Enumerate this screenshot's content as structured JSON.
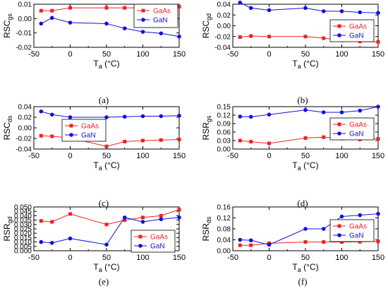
{
  "chart_data": [
    {
      "type": "line",
      "panel_label": "(a)",
      "ylabel_main": "RSC",
      "ylabel_sub": "gs",
      "xlabel_main": "T",
      "xlabel_sub": "a",
      "xlabel_unit": " (°C)",
      "xlim": [
        -50,
        150
      ],
      "ylim": [
        -0.02,
        0.01
      ],
      "x_ticks": [
        -50,
        0,
        50,
        100,
        150
      ],
      "x_tick_labels": [
        "-50",
        "0",
        "50",
        "100",
        "150"
      ],
      "y_ticks": [
        -0.02,
        -0.01,
        0,
        0.01
      ],
      "y_tick_labels": [
        "-0.02",
        "-0.01",
        "0.00",
        "0.01"
      ],
      "legend_position": "top-right",
      "series": [
        {
          "name": "GaAs",
          "color": "#ee2222",
          "marker": "square",
          "x": [
            -40,
            -25,
            0,
            50,
            75,
            100,
            125,
            150
          ],
          "y": [
            0.0055,
            0.0055,
            0.0075,
            0.0075,
            0.0075,
            0.0075,
            0.0073,
            0.0083
          ]
        },
        {
          "name": "GaN",
          "color": "#1111dd",
          "marker": "circle",
          "x": [
            -40,
            -25,
            0,
            50,
            75,
            100,
            125,
            150
          ],
          "y": [
            -0.0035,
            0.0005,
            -0.0028,
            -0.0035,
            -0.0068,
            -0.0092,
            -0.0103,
            -0.0125
          ]
        }
      ]
    },
    {
      "type": "line",
      "panel_label": "(b)",
      "ylabel_main": "RSC",
      "ylabel_sub": "gd",
      "xlabel_main": "T",
      "xlabel_sub": "a",
      "xlabel_unit": " (°C)",
      "xlim": [
        -50,
        150
      ],
      "ylim": [
        -0.04,
        0.04
      ],
      "x_ticks": [
        -50,
        0,
        50,
        100,
        150
      ],
      "x_tick_labels": [
        "-50",
        "0",
        "50",
        "100",
        "150"
      ],
      "y_ticks": [
        -0.04,
        -0.02,
        0,
        0.02,
        0.04
      ],
      "y_tick_labels": [
        "-0.04",
        "-0.02",
        "0.00",
        "0.02",
        "0.04"
      ],
      "legend_position": "center-right",
      "series": [
        {
          "name": "GaAs",
          "color": "#ee2222",
          "marker": "square",
          "x": [
            -40,
            -25,
            0,
            50,
            75,
            100,
            125,
            150
          ],
          "y": [
            -0.021,
            -0.019,
            -0.02,
            -0.02,
            -0.023,
            -0.027,
            -0.029,
            -0.03
          ]
        },
        {
          "name": "GaN",
          "color": "#1111dd",
          "marker": "circle",
          "x": [
            -40,
            -25,
            0,
            50,
            75,
            100,
            125,
            150
          ],
          "y": [
            0.043,
            0.033,
            0.029,
            0.033,
            0.027,
            0.027,
            0.025,
            0.024
          ]
        }
      ]
    },
    {
      "type": "line",
      "panel_label": "(c)",
      "ylabel_main": "RSC",
      "ylabel_sub": "ds",
      "xlabel_main": "T",
      "xlabel_sub": "a",
      "xlabel_unit": " (°C)",
      "xlim": [
        -50,
        150
      ],
      "ylim": [
        -0.04,
        0.04
      ],
      "x_ticks": [
        -50,
        0,
        50,
        100,
        150
      ],
      "x_tick_labels": [
        "-50",
        "0",
        "50",
        "100",
        "150"
      ],
      "y_ticks": [
        -0.04,
        -0.02,
        0,
        0.02,
        0.04
      ],
      "y_tick_labels": [
        "-0.04",
        "-0.02",
        "0.00",
        "0.02",
        "0.04"
      ],
      "legend_position": "center",
      "series": [
        {
          "name": "GaAs",
          "color": "#ee2222",
          "marker": "square",
          "x": [
            -40,
            -25,
            0,
            50,
            75,
            100,
            125,
            150
          ],
          "y": [
            -0.015,
            -0.016,
            -0.019,
            -0.035,
            -0.026,
            -0.024,
            -0.023,
            -0.022
          ]
        },
        {
          "name": "GaN",
          "color": "#1111dd",
          "marker": "circle",
          "x": [
            -40,
            -25,
            0,
            50,
            75,
            100,
            125,
            150
          ],
          "y": [
            0.031,
            0.025,
            0.02,
            0.02,
            0.021,
            0.022,
            0.022,
            0.023
          ]
        }
      ]
    },
    {
      "type": "line",
      "panel_label": "(d)",
      "ylabel_main": "RSR",
      "ylabel_sub": "gs",
      "xlabel_main": "T",
      "xlabel_sub": "a",
      "xlabel_unit": " (°C)",
      "xlim": [
        -50,
        150
      ],
      "ylim": [
        0,
        0.15
      ],
      "x_ticks": [
        -50,
        0,
        50,
        100,
        150
      ],
      "x_tick_labels": [
        "-50",
        "0",
        "50",
        "100",
        "150"
      ],
      "y_ticks": [
        0,
        0.03,
        0.06,
        0.09,
        0.12,
        0.15
      ],
      "y_tick_labels": [
        "0.00",
        "0.03",
        "0.06",
        "0.09",
        "0.12",
        "0.15"
      ],
      "legend_position": "center-right",
      "series": [
        {
          "name": "GaAs",
          "color": "#ee2222",
          "marker": "square",
          "x": [
            -40,
            -25,
            0,
            50,
            75,
            100,
            125,
            150
          ],
          "y": [
            0.03,
            0.026,
            0.02,
            0.039,
            0.042,
            0.037,
            0.034,
            0.036
          ]
        },
        {
          "name": "GaN",
          "color": "#1111dd",
          "marker": "circle",
          "x": [
            -40,
            -25,
            0,
            50,
            75,
            100,
            125,
            150
          ],
          "y": [
            0.115,
            0.114,
            0.122,
            0.138,
            0.13,
            0.13,
            0.136,
            0.15
          ]
        }
      ]
    },
    {
      "type": "line",
      "panel_label": "(e)",
      "ylabel_main": "RSR",
      "ylabel_sub": "gd",
      "xlabel_main": "T",
      "xlabel_sub": "a",
      "xlabel_unit": " (°C)",
      "xlim": [
        -50,
        150
      ],
      "ylim": [
        0,
        0.05
      ],
      "x_ticks": [
        -50,
        0,
        50,
        100,
        150
      ],
      "x_tick_labels": [
        "-50",
        "0",
        "50",
        "100",
        "150"
      ],
      "y_ticks": [
        0,
        0.005,
        0.01,
        0.015,
        0.02,
        0.025,
        0.03,
        0.035,
        0.04,
        0.045,
        0.05
      ],
      "y_tick_labels": [
        "0.000",
        "0.005",
        "0.010",
        "0.015",
        "0.020",
        "0.025",
        "0.030",
        "0.035",
        "0.040",
        "0.045",
        "0.050"
      ],
      "legend_position": "bottom-right",
      "series": [
        {
          "name": "GaAs",
          "color": "#ee2222",
          "marker": "square",
          "x": [
            -40,
            -25,
            0,
            50,
            75,
            100,
            125,
            150
          ],
          "y": [
            0.034,
            0.033,
            0.042,
            0.03,
            0.035,
            0.038,
            0.04,
            0.047
          ]
        },
        {
          "name": "GaN",
          "color": "#1111dd",
          "marker": "circle",
          "x": [
            -40,
            -25,
            0,
            50,
            75,
            100,
            125,
            150
          ],
          "y": [
            0.01,
            0.009,
            0.014,
            0.007,
            0.038,
            0.033,
            0.036,
            0.038
          ]
        }
      ]
    },
    {
      "type": "line",
      "panel_label": "(f)",
      "ylabel_main": "RSR",
      "ylabel_sub": "ds",
      "xlabel_main": "T",
      "xlabel_sub": "a",
      "xlabel_unit": " (°C)",
      "xlim": [
        -50,
        150
      ],
      "ylim": [
        0,
        0.16
      ],
      "x_ticks": [
        -50,
        0,
        50,
        100,
        150
      ],
      "x_tick_labels": [
        "-50",
        "0",
        "50",
        "100",
        "150"
      ],
      "y_ticks": [
        0,
        0.04,
        0.08,
        0.12,
        0.16
      ],
      "y_tick_labels": [
        "0.00",
        "0.04",
        "0.08",
        "0.12",
        "0.16"
      ],
      "legend_position": "center-right",
      "series": [
        {
          "name": "GaAs",
          "color": "#ee2222",
          "marker": "square",
          "x": [
            -40,
            -25,
            0,
            50,
            75,
            100,
            125,
            150
          ],
          "y": [
            0.02,
            0.02,
            0.027,
            0.032,
            0.032,
            0.032,
            0.033,
            0.034
          ]
        },
        {
          "name": "GaN",
          "color": "#1111dd",
          "marker": "circle",
          "x": [
            -40,
            -25,
            0,
            50,
            75,
            100,
            125,
            150
          ],
          "y": [
            0.04,
            0.038,
            0.022,
            0.08,
            0.08,
            0.125,
            0.13,
            0.135
          ]
        }
      ]
    }
  ]
}
